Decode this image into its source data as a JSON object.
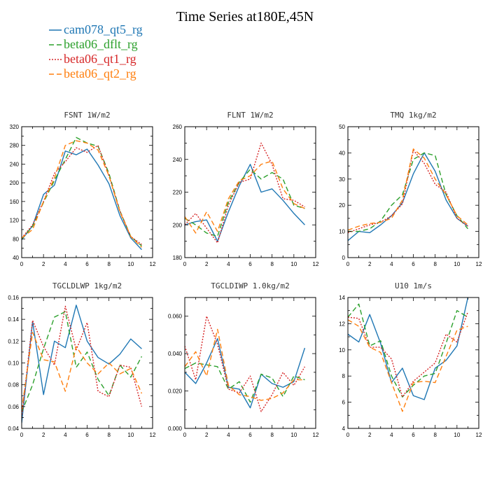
{
  "figure_title": "Time Series at180E,45N",
  "series_styles": [
    {
      "name": "cam078_qt5_rg",
      "color": "#1f77b4",
      "dash": ""
    },
    {
      "name": "beta06_dflt_rg",
      "color": "#2ca02c",
      "dash": "7,4"
    },
    {
      "name": "beta06_qt1_rg",
      "color": "#d62728",
      "dash": "2,2"
    },
    {
      "name": "beta06_qt2_rg",
      "color": "#ff7f0e",
      "dash": "7,4"
    }
  ],
  "chart_data": [
    {
      "type": "line",
      "title": "FSNT 1W/m2",
      "xlim": [
        0,
        12
      ],
      "ylim": [
        40,
        320
      ],
      "xticks": [
        0,
        2,
        4,
        6,
        8,
        10,
        12
      ],
      "yticks": [
        40,
        80,
        120,
        160,
        200,
        240,
        280,
        320
      ],
      "ytick_labels": [
        "40",
        "80",
        "120",
        "160",
        "200",
        "240",
        "280",
        "320"
      ],
      "x": [
        0,
        1,
        2,
        3,
        4,
        5,
        6,
        7,
        8,
        9,
        10,
        11
      ],
      "series": [
        {
          "name": "cam078_qt5_rg",
          "values": [
            78,
            108,
            175,
            195,
            268,
            260,
            272,
            238,
            198,
            130,
            82,
            57
          ]
        },
        {
          "name": "beta06_dflt_rg",
          "values": [
            80,
            107,
            158,
            205,
            250,
            297,
            285,
            278,
            220,
            140,
            85,
            65
          ]
        },
        {
          "name": "beta06_qt1_rg",
          "values": [
            82,
            110,
            160,
            220,
            245,
            275,
            265,
            280,
            215,
            140,
            85,
            68
          ]
        },
        {
          "name": "beta06_qt2_rg",
          "values": [
            82,
            100,
            160,
            210,
            280,
            290,
            285,
            270,
            215,
            138,
            85,
            62
          ]
        }
      ]
    },
    {
      "type": "line",
      "title": "FLNT 1W/m2",
      "xlim": [
        0,
        12
      ],
      "ylim": [
        180,
        260
      ],
      "xticks": [
        0,
        2,
        4,
        6,
        8,
        10,
        12
      ],
      "yticks": [
        180,
        200,
        220,
        240,
        260
      ],
      "ytick_labels": [
        "180",
        "200",
        "220",
        "240",
        "260"
      ],
      "x": [
        0,
        1,
        2,
        3,
        4,
        5,
        6,
        7,
        8,
        9,
        10,
        11
      ],
      "series": [
        {
          "name": "cam078_qt5_rg",
          "values": [
            200,
            202,
            203,
            190,
            208,
            224,
            237,
            220,
            222,
            215,
            207,
            200
          ]
        },
        {
          "name": "beta06_dflt_rg",
          "values": [
            204,
            200,
            195,
            193,
            214,
            226,
            234,
            228,
            232,
            228,
            212,
            210
          ]
        },
        {
          "name": "beta06_qt1_rg",
          "values": [
            200,
            207,
            198,
            189,
            212,
            226,
            228,
            250,
            237,
            216,
            215,
            211
          ]
        },
        {
          "name": "beta06_qt2_rg",
          "values": [
            205,
            195,
            208,
            196,
            216,
            227,
            230,
            237,
            239,
            222,
            213,
            210
          ]
        }
      ]
    },
    {
      "type": "line",
      "title": "TMQ 1kg/m2",
      "xlim": [
        0,
        12
      ],
      "ylim": [
        0,
        50
      ],
      "xticks": [
        0,
        2,
        4,
        6,
        8,
        10,
        12
      ],
      "yticks": [
        0,
        10,
        20,
        30,
        40,
        50
      ],
      "ytick_labels": [
        "0",
        "10",
        "20",
        "30",
        "40",
        "50"
      ],
      "x": [
        0,
        1,
        2,
        3,
        4,
        5,
        6,
        7,
        8,
        9,
        10,
        11
      ],
      "series": [
        {
          "name": "cam078_qt5_rg",
          "values": [
            6.5,
            10,
            9.5,
            12.5,
            16,
            21,
            32,
            40,
            33,
            22,
            15,
            12
          ]
        },
        {
          "name": "beta06_dflt_rg",
          "values": [
            10,
            10,
            11,
            14,
            20,
            24,
            37.5,
            40,
            39,
            24,
            16,
            11
          ]
        },
        {
          "name": "beta06_qt1_rg",
          "values": [
            9.5,
            11,
            12.5,
            13.5,
            16,
            20.5,
            41,
            36,
            28,
            25,
            15,
            12
          ]
        },
        {
          "name": "beta06_qt2_rg",
          "values": [
            10.5,
            12,
            13,
            13.5,
            15,
            22,
            41.5,
            38,
            30,
            24,
            16,
            12.5
          ]
        }
      ]
    },
    {
      "type": "line",
      "title": "TGCLDLWP 1kg/m2",
      "xlim": [
        0,
        12
      ],
      "ylim": [
        0.04,
        0.16
      ],
      "xticks": [
        0,
        2,
        4,
        6,
        8,
        10,
        12
      ],
      "yticks": [
        0.04,
        0.06,
        0.08,
        0.1,
        0.12,
        0.14,
        0.16
      ],
      "ytick_labels": [
        "0.04",
        "0.06",
        "0.08",
        "0.10",
        "0.12",
        "0.14",
        "0.16"
      ],
      "x": [
        0,
        1,
        2,
        3,
        4,
        5,
        6,
        7,
        8,
        9,
        10,
        11
      ],
      "series": [
        {
          "name": "cam078_qt5_rg",
          "values": [
            0.045,
            0.138,
            0.071,
            0.12,
            0.114,
            0.153,
            0.12,
            0.105,
            0.099,
            0.108,
            0.122,
            0.113
          ]
        },
        {
          "name": "beta06_dflt_rg",
          "values": [
            0.055,
            0.08,
            0.113,
            0.142,
            0.147,
            0.096,
            0.11,
            0.085,
            0.07,
            0.098,
            0.087,
            0.106
          ]
        },
        {
          "name": "beta06_qt1_rg",
          "values": [
            0.05,
            0.139,
            0.115,
            0.098,
            0.152,
            0.112,
            0.137,
            0.074,
            0.069,
            0.098,
            0.096,
            0.06
          ]
        },
        {
          "name": "beta06_qt2_rg",
          "values": [
            0.057,
            0.128,
            0.103,
            0.101,
            0.074,
            0.115,
            0.1,
            0.09,
            0.1,
            0.09,
            0.095,
            0.072
          ]
        }
      ]
    },
    {
      "type": "line",
      "title": "TGCLDIWP 1.0kg/m2",
      "xlim": [
        0,
        12
      ],
      "ylim": [
        0.0,
        0.07
      ],
      "xticks": [
        0,
        2,
        4,
        6,
        8,
        10,
        12
      ],
      "yticks": [
        0.0,
        0.02,
        0.04,
        0.06
      ],
      "ytick_labels": [
        "0.000",
        "0.020",
        "0.040",
        "0.060"
      ],
      "x": [
        0,
        1,
        2,
        3,
        4,
        5,
        6,
        7,
        8,
        9,
        10,
        11
      ],
      "series": [
        {
          "name": "cam078_qt5_rg",
          "values": [
            0.03,
            0.024,
            0.035,
            0.048,
            0.022,
            0.021,
            0.011,
            0.029,
            0.024,
            0.022,
            0.025,
            0.043
          ]
        },
        {
          "name": "beta06_dflt_rg",
          "values": [
            0.032,
            0.035,
            0.034,
            0.033,
            0.021,
            0.025,
            0.014,
            0.029,
            0.027,
            0.017,
            0.028,
            0.026
          ]
        },
        {
          "name": "beta06_qt1_rg",
          "values": [
            0.044,
            0.026,
            0.06,
            0.045,
            0.021,
            0.019,
            0.028,
            0.009,
            0.018,
            0.03,
            0.023,
            0.033
          ]
        },
        {
          "name": "beta06_qt2_rg",
          "values": [
            0.033,
            0.041,
            0.028,
            0.053,
            0.023,
            0.018,
            0.017,
            0.015,
            0.016,
            0.019,
            0.026,
            0.026
          ]
        }
      ]
    },
    {
      "type": "line",
      "title": "U10 1m/s",
      "xlim": [
        0,
        12
      ],
      "ylim": [
        4,
        14
      ],
      "xticks": [
        0,
        2,
        4,
        6,
        8,
        10,
        12
      ],
      "yticks": [
        4,
        6,
        8,
        10,
        12,
        14
      ],
      "ytick_labels": [
        "4",
        "6",
        "8",
        "10",
        "12",
        "14"
      ],
      "x": [
        0,
        1,
        2,
        3,
        4,
        5,
        6,
        7,
        8,
        9,
        10,
        11
      ],
      "series": [
        {
          "name": "cam078_qt5_rg",
          "values": [
            11.2,
            10.6,
            12.7,
            10.5,
            7.5,
            8.6,
            6.5,
            6.2,
            8.6,
            9.2,
            10.3,
            14.0
          ]
        },
        {
          "name": "beta06_dflt_rg",
          "values": [
            12.5,
            13.5,
            10.3,
            10.7,
            8.0,
            6.4,
            7.3,
            8.0,
            8.2,
            10.5,
            13.0,
            12.5
          ]
        },
        {
          "name": "beta06_qt1_rg",
          "values": [
            12.5,
            12.4,
            10.2,
            10.2,
            9.3,
            6.4,
            7.6,
            8.3,
            9.0,
            11.2,
            10.6,
            12.9
          ]
        },
        {
          "name": "beta06_qt2_rg",
          "values": [
            12.3,
            11.8,
            10.2,
            9.8,
            7.5,
            5.3,
            7.5,
            7.6,
            7.5,
            9.5,
            11.5,
            11.8
          ]
        }
      ]
    }
  ]
}
